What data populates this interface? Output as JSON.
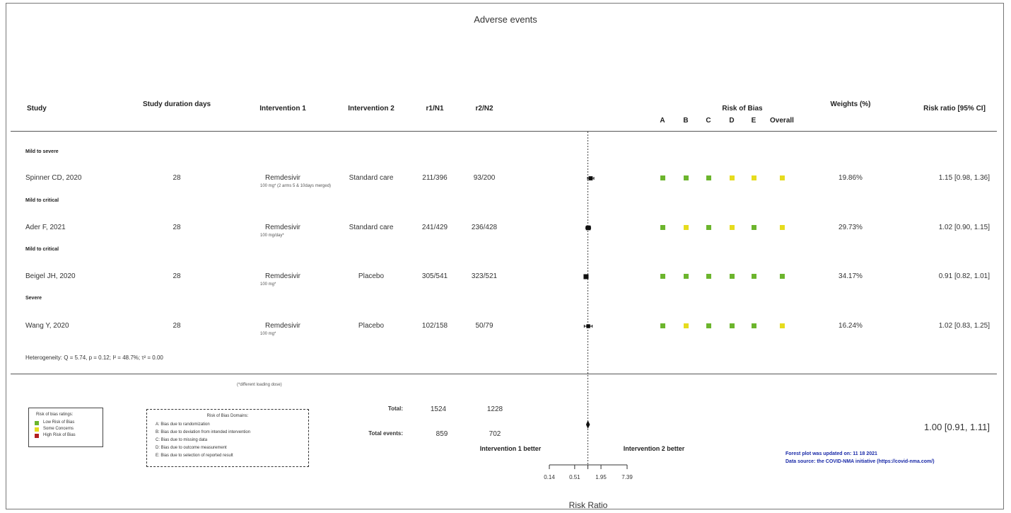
{
  "title": "Adverse events",
  "headers": {
    "study": "Study",
    "duration": "Study duration days",
    "int1": "Intervention 1",
    "int2": "Intervention 2",
    "r1": "r1/N1",
    "r2": "r2/N2",
    "rob": "Risk of Bias",
    "rob_letters": [
      "A",
      "B",
      "C",
      "D",
      "E",
      "Overall"
    ],
    "weights": "Weights (%)",
    "rr": "Risk ratio [95% CI]"
  },
  "colors": {
    "low": "#6cb52d",
    "some": "#e6dc1e",
    "high": "#b21f1f"
  },
  "rows": [
    {
      "group": "Mild to severe",
      "study": "Spinner CD, 2020",
      "days": "28",
      "int1": "Remdesivir",
      "dose": "100 mg* (2 arms 5 & 10days merged)",
      "int2": "Standard care",
      "r1": "211/396",
      "r2": "93/200",
      "rob": [
        "low",
        "low",
        "low",
        "some",
        "some",
        "some"
      ],
      "weight": "19.86%",
      "rr_text": "1.15 [0.98, 1.36]"
    },
    {
      "group": "Mild to critical",
      "study": "Ader F, 2021",
      "days": "28",
      "int1": "Remdesivir",
      "dose": "100 mg/day*",
      "int2": "Standard care",
      "r1": "241/429",
      "r2": "236/428",
      "rob": [
        "low",
        "some",
        "low",
        "some",
        "low",
        "some"
      ],
      "weight": "29.73%",
      "rr_text": "1.02 [0.90, 1.15]"
    },
    {
      "group": "Mild to critical",
      "study": "Beigel JH, 2020",
      "days": "28",
      "int1": "Remdesivir",
      "dose": "100 mg*",
      "int2": "Placebo",
      "r1": "305/541",
      "r2": "323/521",
      "rob": [
        "low",
        "low",
        "low",
        "low",
        "low",
        "low"
      ],
      "weight": "34.17%",
      "rr_text": "0.91 [0.82, 1.01]"
    },
    {
      "group": "Severe",
      "study": "Wang Y, 2020",
      "days": "28",
      "int1": "Remdesivir",
      "dose": "100 mg*",
      "int2": "Placebo",
      "r1": "102/158",
      "r2": "50/79",
      "rob": [
        "low",
        "some",
        "low",
        "low",
        "low",
        "some"
      ],
      "weight": "16.24%",
      "rr_text": "1.02 [0.83, 1.25]"
    }
  ],
  "heterogeneity": "Heterogeneity: Q = 5.74, p = 0.12; I² = 48.7%; τ² = 0.00",
  "footnote": "(*different loading dose)",
  "totals": {
    "total_label": "Total:",
    "total_n1": "1524",
    "total_n2": "1228",
    "events_label": "Total events:",
    "events_1": "859",
    "events_2": "702",
    "pooled_text": "1.00 [0.91, 1.11]"
  },
  "favours": {
    "left": "Intervention 1 better",
    "right": "Intervention 2 better"
  },
  "legend": {
    "title": "Risk of bias ratings:",
    "items": [
      {
        "label": "Low Risk of Bias",
        "color": "#6cb52d"
      },
      {
        "label": "Some Concerns",
        "color": "#e6dc1e"
      },
      {
        "label": "High Risk of Bias",
        "color": "#b21f1f"
      }
    ]
  },
  "domains": {
    "title": "Risk of Bias Domains:",
    "items": [
      "A: Bias due to randomization",
      "B: Bias due to deviation from intended intervention",
      "C: Bias due to missing data",
      "D: Bias due to outcome measurement",
      "E: Bias due to selection of reported result"
    ]
  },
  "updated": "Forest plot was updated on: 11 18 2021",
  "source": "Data source: the COVID-NMA initiative (https://covid-nma.com/)",
  "chart_data": {
    "type": "forest",
    "title": "Adverse events",
    "xlabel": "Risk Ratio",
    "x_scale": "log",
    "xlim": [
      0.14,
      7.39
    ],
    "x_ticks": [
      0.14,
      0.51,
      1.95,
      7.39
    ],
    "x_tick_labels": [
      "0.14",
      "0.51",
      "1.95",
      "7.39"
    ],
    "reference_line": 1,
    "studies": [
      {
        "study": "Spinner CD, 2020",
        "rr": 1.15,
        "lower": 0.98,
        "upper": 1.36,
        "weight": 19.86
      },
      {
        "study": "Ader F, 2021",
        "rr": 1.02,
        "lower": 0.9,
        "upper": 1.15,
        "weight": 29.73
      },
      {
        "study": "Beigel JH, 2020",
        "rr": 0.91,
        "lower": 0.82,
        "upper": 1.01,
        "weight": 34.17
      },
      {
        "study": "Wang Y, 2020",
        "rr": 1.02,
        "lower": 0.83,
        "upper": 1.25,
        "weight": 16.24
      }
    ],
    "pooled": {
      "rr": 1.0,
      "lower": 0.91,
      "upper": 1.11
    }
  }
}
